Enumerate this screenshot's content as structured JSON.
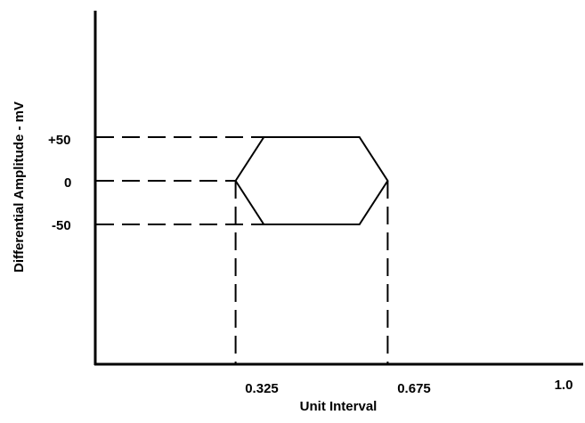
{
  "diagram": {
    "y_axis_label": "Differential Amplitude - mV",
    "x_axis_label": "Unit Interval",
    "y_tick_labels": [
      "+50",
      "0",
      "-50"
    ],
    "x_tick_labels": [
      "0.325",
      "0.675",
      "1.0"
    ]
  },
  "eye_mask": {
    "vertices_ui_mv": [
      [
        0.325,
        0
      ],
      [
        0.39,
        50
      ],
      [
        0.61,
        50
      ],
      [
        0.675,
        0
      ],
      [
        0.61,
        -50
      ],
      [
        0.39,
        -50
      ]
    ],
    "amplitude_levels_mv": [
      50,
      0,
      -50
    ],
    "time_markers_ui": [
      0.325,
      0.675
    ],
    "x_range_ui": [
      0,
      1.0
    ],
    "line_color": "#000000",
    "guide_style": "dashed"
  }
}
